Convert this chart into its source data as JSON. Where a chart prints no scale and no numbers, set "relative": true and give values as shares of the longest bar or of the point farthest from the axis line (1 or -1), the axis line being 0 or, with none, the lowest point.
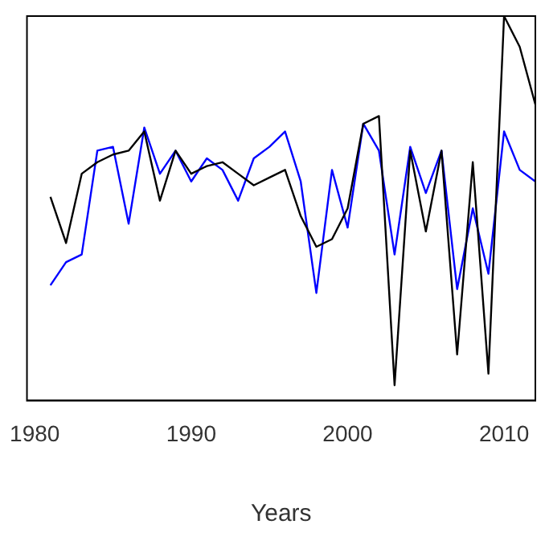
{
  "chart_data": {
    "type": "line",
    "xlabel": "Years",
    "relative": true,
    "xlim": [
      1979.5,
      2012
    ],
    "xticks": [
      1980,
      1990,
      2000,
      2010
    ],
    "grid": false,
    "legend": false,
    "x": [
      1981,
      1982,
      1983,
      1984,
      1985,
      1986,
      1987,
      1988,
      1989,
      1990,
      1991,
      1992,
      1993,
      1994,
      1995,
      1996,
      1997,
      1998,
      1999,
      2000,
      2001,
      2002,
      2003,
      2004,
      2005,
      2006,
      2007,
      2008,
      2009,
      2010,
      2011,
      2012
    ],
    "series": [
      {
        "color": "#000000",
        "values": [
          0.53,
          0.41,
          0.59,
          0.62,
          0.64,
          0.65,
          0.7,
          0.52,
          0.65,
          0.59,
          0.61,
          0.62,
          0.59,
          0.56,
          0.58,
          0.6,
          0.48,
          0.4,
          0.42,
          0.5,
          0.72,
          0.74,
          0.04,
          0.65,
          0.44,
          0.65,
          0.12,
          0.62,
          0.07,
          1.0,
          0.92,
          0.77
        ]
      },
      {
        "color": "#0000ff",
        "values": [
          0.3,
          0.36,
          0.38,
          0.65,
          0.66,
          0.46,
          0.71,
          0.59,
          0.65,
          0.57,
          0.63,
          0.6,
          0.52,
          0.63,
          0.66,
          0.7,
          0.57,
          0.28,
          0.6,
          0.45,
          0.72,
          0.65,
          0.38,
          0.66,
          0.54,
          0.65,
          0.29,
          0.5,
          0.33,
          0.7,
          0.6,
          0.57
        ]
      }
    ]
  }
}
